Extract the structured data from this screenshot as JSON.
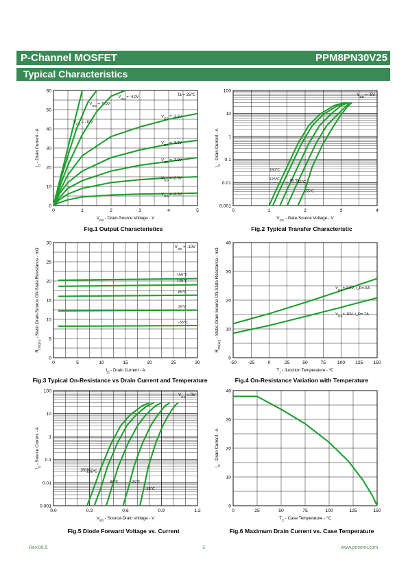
{
  "header": {
    "title": "P-Channel MOSFET",
    "part_number": "PPM8PN30V25",
    "section": "Typical Characteristics"
  },
  "footer": {
    "revision": "Rev.06.5",
    "page": "3",
    "website": "www.prisemi.com"
  },
  "colors": {
    "header_bg": "#3a8a55",
    "curve": "#1f9e2e",
    "grid": "#000000"
  },
  "chart_data": [
    {
      "id": "fig1",
      "type": "line",
      "title": "Fig.1 Output Characteristics",
      "xlabel": "V_DS - Drain-Source Voltage - V",
      "ylabel": "I_D - Drain Current - A",
      "xlim": [
        0,
        5
      ],
      "ylim": [
        0,
        60
      ],
      "xticks": [
        0,
        1,
        2,
        3,
        4,
        5
      ],
      "yticks": [
        0,
        10,
        20,
        30,
        40,
        50,
        60
      ],
      "xtick_labels": [
        "0",
        "1",
        "2",
        "3",
        "4",
        "5"
      ],
      "ytick_labels": [
        "0",
        "10",
        "20",
        "30",
        "40",
        "50",
        "60"
      ],
      "annotation": "Ta = 25℃",
      "series": [
        {
          "name": "V_GS = -10V",
          "x": [
            0,
            0.2,
            0.5,
            0.8,
            1.0
          ],
          "y": [
            0,
            12,
            30,
            48,
            60
          ]
        },
        {
          "name": "V_GS = -5.0V",
          "x": [
            0,
            0.2,
            0.5,
            0.8,
            1.2,
            1.5
          ],
          "y": [
            0,
            11,
            26,
            40,
            54,
            60
          ]
        },
        {
          "name": "V_GS = -4.0V",
          "x": [
            0,
            0.2,
            0.5,
            1.0,
            1.5,
            2.0,
            2.5
          ],
          "y": [
            0,
            9,
            21,
            37,
            49,
            57,
            60
          ]
        },
        {
          "name": "V_GS = -3.5V",
          "x": [
            0,
            0.2,
            0.5,
            1.0,
            2.0,
            3.0,
            4.0,
            5.0
          ],
          "y": [
            0,
            7,
            16,
            26,
            36,
            41,
            45,
            48
          ]
        },
        {
          "name": "V_GS = -3.2V",
          "x": [
            0,
            0.2,
            0.5,
            1.0,
            2.0,
            3.0,
            4.0,
            5.0
          ],
          "y": [
            0,
            6,
            12,
            18,
            25,
            29,
            32,
            34
          ]
        },
        {
          "name": "V_GS = -3.0V",
          "x": [
            0,
            0.2,
            0.5,
            1.0,
            2.0,
            3.0,
            4.0,
            5.0
          ],
          "y": [
            0,
            4,
            9,
            13,
            18,
            21,
            23,
            25
          ]
        },
        {
          "name": "V_GS = -2.8V",
          "x": [
            0,
            0.2,
            0.5,
            1.0,
            2.0,
            3.0,
            4.0,
            5.0
          ],
          "y": [
            0,
            3,
            6,
            9,
            12,
            13.5,
            14.5,
            15
          ]
        },
        {
          "name": "V_GS = -2.5V",
          "x": [
            0,
            0.2,
            0.5,
            1.0,
            2.0,
            3.0,
            4.0,
            5.0
          ],
          "y": [
            0,
            1.5,
            3,
            4.5,
            5.5,
            6,
            6.2,
            6.5
          ]
        }
      ]
    },
    {
      "id": "fig2",
      "type": "line",
      "title": "Fig.2 Typical Transfer Characteristic",
      "xlabel": "V_GS - Gate-Source Voltage - V",
      "ylabel": "I_D - Drain Current - A",
      "xlim": [
        0,
        4
      ],
      "ylim": [
        0.001,
        100
      ],
      "yscale": "log",
      "xticks": [
        0,
        1,
        2,
        3,
        4
      ],
      "xtick_labels": [
        "0",
        "1",
        "2",
        "3",
        "4"
      ],
      "ytick_labels": [
        "0.001",
        "0.01",
        "0.1",
        "1",
        "10",
        "100"
      ],
      "annotation": "V_DS = -5V",
      "series": [
        {
          "name": "150℃",
          "x": [
            1.0,
            1.2,
            1.5,
            1.8,
            2.1,
            2.4,
            2.8,
            3.1
          ],
          "y": [
            0.001,
            0.005,
            0.05,
            0.5,
            3,
            9,
            22,
            30
          ]
        },
        {
          "name": "125℃",
          "x": [
            1.1,
            1.3,
            1.6,
            1.9,
            2.2,
            2.5,
            2.9,
            3.15
          ],
          "y": [
            0.001,
            0.005,
            0.05,
            0.5,
            3,
            9,
            22,
            30
          ]
        },
        {
          "name": "85℃",
          "x": [
            1.3,
            1.5,
            1.8,
            2.1,
            2.4,
            2.7,
            3.0,
            3.2
          ],
          "y": [
            0.001,
            0.005,
            0.05,
            0.5,
            3,
            9,
            22,
            30
          ]
        },
        {
          "name": "25℃",
          "x": [
            1.5,
            1.7,
            2.0,
            2.3,
            2.6,
            2.9,
            3.15,
            3.25
          ],
          "y": [
            0.001,
            0.005,
            0.05,
            0.5,
            3,
            9,
            22,
            30
          ]
        },
        {
          "name": "-55℃",
          "x": [
            1.8,
            2.0,
            2.2,
            2.5,
            2.8,
            3.0,
            3.2,
            3.3
          ],
          "y": [
            0.001,
            0.005,
            0.05,
            0.5,
            3,
            9,
            22,
            30
          ]
        }
      ]
    },
    {
      "id": "fig3",
      "type": "line",
      "title": "Fig.3 Typical On-Resistance  vs Drain Current and Temperature",
      "xlabel": "I_D - Drain Current - A",
      "ylabel": "R_DS(on) - Static Drain-Source ON-State Resistance - mΩ",
      "xlim": [
        0,
        30
      ],
      "ylim": [
        0,
        30
      ],
      "xticks": [
        0,
        5,
        10,
        15,
        20,
        25,
        30
      ],
      "yticks": [
        0,
        5,
        10,
        15,
        20,
        25,
        30
      ],
      "xtick_labels": [
        "0",
        "5",
        "10",
        "15",
        "20",
        "25",
        "30"
      ],
      "ytick_labels": [
        "0",
        "5",
        "10",
        "15",
        "20",
        "25",
        "30"
      ],
      "annotation": "V_GS = -10V",
      "series": [
        {
          "name": "150℃",
          "x": [
            1,
            30
          ],
          "y": [
            20.2,
            20.6
          ]
        },
        {
          "name": "125℃",
          "x": [
            1,
            30
          ],
          "y": [
            18.6,
            19.0
          ]
        },
        {
          "name": "85℃",
          "x": [
            1,
            30
          ],
          "y": [
            16.0,
            16.3
          ]
        },
        {
          "name": "25℃",
          "x": [
            1,
            30
          ],
          "y": [
            12.2,
            12.4
          ]
        },
        {
          "name": "-55℃",
          "x": [
            1,
            30
          ],
          "y": [
            8.2,
            8.4
          ]
        }
      ]
    },
    {
      "id": "fig4",
      "type": "line",
      "title": "Fig.4 On-Resistance Variation with Temperature",
      "xlabel": "T_J - Junction Temperature - ℃",
      "ylabel": "R_DS(on) - Static Drain-Source ON-State Resistance - mΩ",
      "xlim": [
        -50,
        150
      ],
      "ylim": [
        0,
        40
      ],
      "xticks": [
        -50,
        -25,
        0,
        25,
        50,
        75,
        100,
        125,
        150
      ],
      "yticks": [
        0,
        10,
        20,
        30,
        40
      ],
      "xtick_labels": [
        "-50",
        "-25",
        "0",
        "25",
        "50",
        "75",
        "100",
        "125",
        "150"
      ],
      "ytick_labels": [
        "0",
        "10",
        "20",
        "30",
        "40"
      ],
      "series": [
        {
          "name": "V_GS=-4.5V, I_D=-6A",
          "x": [
            -50,
            0,
            50,
            100,
            150
          ],
          "y": [
            11.8,
            15.3,
            19.2,
            23.3,
            27.5
          ]
        },
        {
          "name": "V_GS=-10V, I_D=-7A",
          "x": [
            -50,
            0,
            50,
            100,
            150
          ],
          "y": [
            8.5,
            11.2,
            14.3,
            17.5,
            20.8
          ]
        }
      ]
    },
    {
      "id": "fig5",
      "type": "line",
      "title": "Fig.5 Diode Forward Voltage vs. Current",
      "xlabel": "V_SD - Source-Drain Voltage - V",
      "ylabel": "I_S - Source Current - A",
      "xlim": [
        0,
        1.2
      ],
      "ylim": [
        0.001,
        100
      ],
      "yscale": "log",
      "xticks": [
        0,
        0.3,
        0.6,
        0.9,
        1.2
      ],
      "xtick_labels": [
        "0.0",
        "0.3",
        "0.6",
        "0.9",
        "1.2"
      ],
      "ytick_labels": [
        "0.001",
        "0.01",
        "0.1",
        "1",
        "10",
        "100"
      ],
      "annotation": "V_GS = 0V",
      "series": [
        {
          "name": "150℃",
          "x": [
            0.28,
            0.33,
            0.4,
            0.48,
            0.56,
            0.64,
            0.74,
            0.8
          ],
          "y": [
            0.001,
            0.005,
            0.05,
            0.5,
            3,
            9,
            22,
            30
          ]
        },
        {
          "name": "125℃",
          "x": [
            0.34,
            0.39,
            0.45,
            0.53,
            0.61,
            0.69,
            0.78,
            0.84
          ],
          "y": [
            0.001,
            0.005,
            0.05,
            0.5,
            3,
            9,
            22,
            30
          ]
        },
        {
          "name": "85℃",
          "x": [
            0.44,
            0.48,
            0.54,
            0.62,
            0.7,
            0.77,
            0.85,
            0.9
          ],
          "y": [
            0.001,
            0.005,
            0.05,
            0.5,
            3,
            9,
            22,
            30
          ]
        },
        {
          "name": "25℃",
          "x": [
            0.58,
            0.62,
            0.67,
            0.74,
            0.81,
            0.87,
            0.93,
            0.97
          ],
          "y": [
            0.001,
            0.005,
            0.05,
            0.5,
            3,
            9,
            22,
            30
          ]
        },
        {
          "name": "-55℃",
          "x": [
            0.72,
            0.75,
            0.79,
            0.85,
            0.91,
            0.96,
            1.01,
            1.04
          ],
          "y": [
            0.001,
            0.005,
            0.05,
            0.5,
            3,
            9,
            22,
            30
          ]
        }
      ]
    },
    {
      "id": "fig6",
      "type": "line",
      "title": "Fig.6 Maximum Drain Current vs. Case Temperature",
      "xlabel": "T_C - Case Temperature - °C",
      "ylabel": "I_D - Drain Current - A",
      "xlim": [
        0,
        150
      ],
      "ylim": [
        0,
        40
      ],
      "xticks": [
        0,
        25,
        50,
        75,
        100,
        125,
        150
      ],
      "yticks": [
        0,
        10,
        20,
        30,
        40
      ],
      "xtick_labels": [
        "0",
        "25",
        "50",
        "75",
        "100",
        "125",
        "150"
      ],
      "ytick_labels": [
        "0",
        "10",
        "20",
        "30",
        "40"
      ],
      "series": [
        {
          "name": "",
          "x": [
            0,
            25,
            50,
            75,
            100,
            120,
            135,
            145,
            150
          ],
          "y": [
            38,
            38,
            33.5,
            28.5,
            22,
            15.5,
            9,
            3.5,
            0
          ]
        }
      ]
    }
  ]
}
